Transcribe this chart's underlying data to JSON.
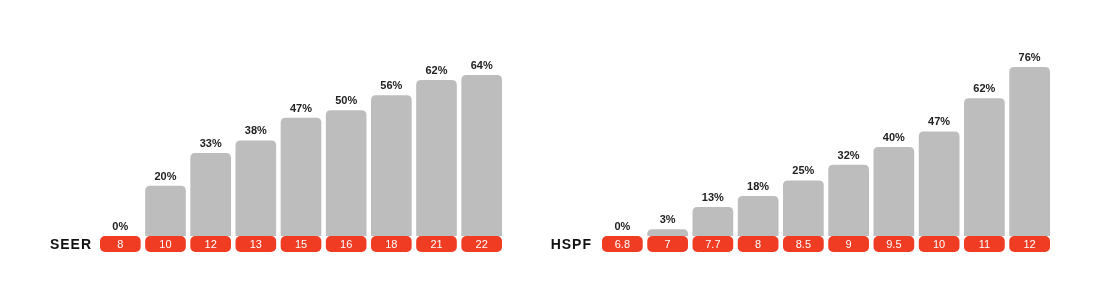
{
  "chart_data": [
    {
      "type": "bar",
      "xlabel": "SEER",
      "categories": [
        "8",
        "10",
        "12",
        "13",
        "15",
        "16",
        "18",
        "21",
        "22"
      ],
      "values": [
        0,
        20,
        33,
        38,
        47,
        50,
        56,
        62,
        64
      ],
      "value_labels": [
        "0%",
        "20%",
        "33%",
        "38%",
        "47%",
        "50%",
        "56%",
        "62%",
        "64%"
      ],
      "color": "#bdbdbd"
    },
    {
      "type": "bar",
      "xlabel": "HSPF",
      "categories": [
        "6.8",
        "7",
        "7.7",
        "8",
        "8.5",
        "9",
        "9.5",
        "10",
        "11",
        "12"
      ],
      "values": [
        0,
        3,
        13,
        18,
        25,
        32,
        40,
        47,
        62,
        76
      ],
      "value_labels": [
        "0%",
        "3%",
        "13%",
        "18%",
        "25%",
        "32%",
        "40%",
        "47%",
        "62%",
        "76%"
      ],
      "color": "#bdbdbd"
    }
  ]
}
